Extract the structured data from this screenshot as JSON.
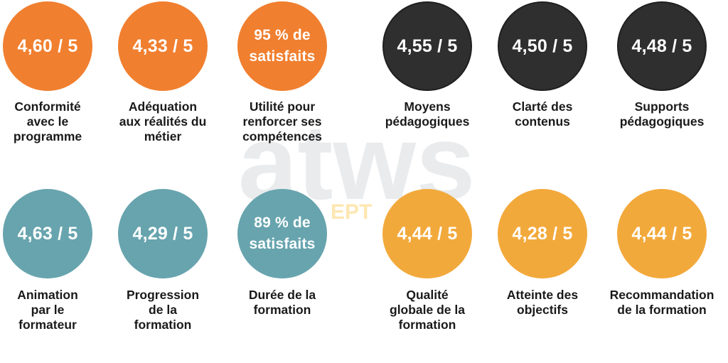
{
  "colors": {
    "orange": "#f07f2f",
    "dark": "#2f2f2f",
    "teal": "#67a4ae",
    "yellow": "#f2a93b",
    "watermark_gray": "#e9ebed",
    "watermark_yellow": "#fde7b2"
  },
  "watermark": {
    "text": "atws",
    "subtext": "EPT"
  },
  "items": [
    {
      "value": "4,60 / 5",
      "label": "Conformité\navec le\nprogramme"
    },
    {
      "value": "4,33 / 5",
      "label": "Adéquation\naux réalités du\nmétier"
    },
    {
      "value": "95 % de\nsatisfaits",
      "label": "Utilité pour\nrenforcer ses\ncompétences"
    },
    {
      "value": "4,55 / 5",
      "label": "Moyens\npédagogiques"
    },
    {
      "value": "4,50 / 5",
      "label": "Clarté des\ncontenus"
    },
    {
      "value": "4,48 / 5",
      "label": "Supports\npédagogiques"
    },
    {
      "value": "4,63 / 5",
      "label": "Animation\npar le\nformateur"
    },
    {
      "value": "4,29 / 5",
      "label": "Progression\nde la\nformation"
    },
    {
      "value": "89 % de\nsatisfaits",
      "label": "Durée de la\nformation"
    },
    {
      "value": "4,44 / 5",
      "label": "Qualité\nglobale de la\nformation"
    },
    {
      "value": "4,28 / 5",
      "label": "Atteinte des\nobjectifs"
    },
    {
      "value": "4,44 / 5",
      "label": "Recommandation\nde la formation"
    }
  ]
}
